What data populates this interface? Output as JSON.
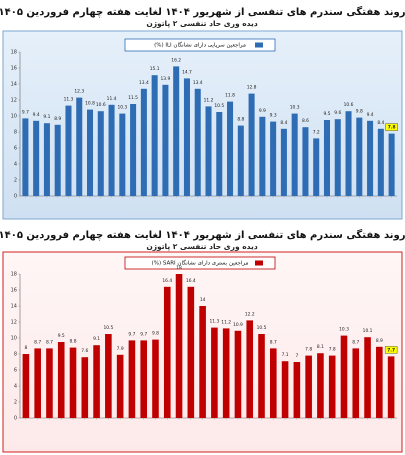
{
  "chart_data": [
    {
      "type": "bar",
      "title": "روند هفتگی سندرم های تنفسی از شهریور ۱۴۰۴ لغایت هفته چهارم فروردین ۱۴۰۵",
      "subtitle": "دیده وری حاد تنفسی ۲ پاتوژن",
      "legend_label": "مراجعین سرپایی دارای نشانگان ILI (%)",
      "color": "#2e6db4",
      "categories": [
        null,
        null,
        null,
        null,
        null,
        null,
        null,
        null,
        null,
        null,
        null,
        null,
        null,
        null,
        null,
        null,
        null,
        null,
        null,
        null,
        null,
        null,
        null,
        null,
        null,
        null,
        null,
        null,
        null,
        null,
        null,
        null,
        null,
        null,
        null
      ],
      "values": [
        9.7,
        9.4,
        9.1,
        8.9,
        11.3,
        12.3,
        10.8,
        10.6,
        11.4,
        10.3,
        11.5,
        13.4,
        15.1,
        13.9,
        16.2,
        14.7,
        13.4,
        11.2,
        10.5,
        11.8,
        8.8,
        12.8,
        9.9,
        9.3,
        8.4,
        10.3,
        8.6,
        7.2,
        9.5,
        9.6,
        10.6,
        9.8,
        9.4,
        8.4,
        7.8
      ],
      "ylim": [
        0,
        18
      ],
      "yticks": [
        0,
        2,
        4,
        6,
        8,
        10,
        12,
        14,
        16,
        18
      ],
      "grid": false
    },
    {
      "type": "bar",
      "title": "روند هفتگی سندرم های تنفسی از شهریور ۱۴۰۴ لغایت هفته چهارم فروردین ۱۴۰۵",
      "subtitle": "دیده وری حاد تنفسی ۲ پاتوژن",
      "legend_label": "مراجعین بستری دارای نشانگان SARI (%)",
      "color": "#c00000",
      "categories": [
        null,
        null,
        null,
        null,
        null,
        null,
        null,
        null,
        null,
        null,
        null,
        null,
        null,
        null,
        null,
        null,
        null,
        null,
        null,
        null,
        null,
        null,
        null,
        null,
        null,
        null,
        null,
        null,
        null,
        null,
        null,
        null
      ],
      "values": [
        8.0,
        8.7,
        8.7,
        9.5,
        8.8,
        7.6,
        9.1,
        10.5,
        7.9,
        9.7,
        9.7,
        9.8,
        16.4,
        18.0,
        16.4,
        14.0,
        11.3,
        11.2,
        10.9,
        12.2,
        10.5,
        8.7,
        7.1,
        7.0,
        7.8,
        8.1,
        7.8,
        10.3,
        8.7,
        10.1,
        8.9,
        7.7
      ],
      "ylim": [
        0,
        18
      ],
      "yticks": [
        0,
        2,
        4,
        6,
        8,
        10,
        12,
        14,
        16,
        18
      ],
      "grid": false
    }
  ]
}
